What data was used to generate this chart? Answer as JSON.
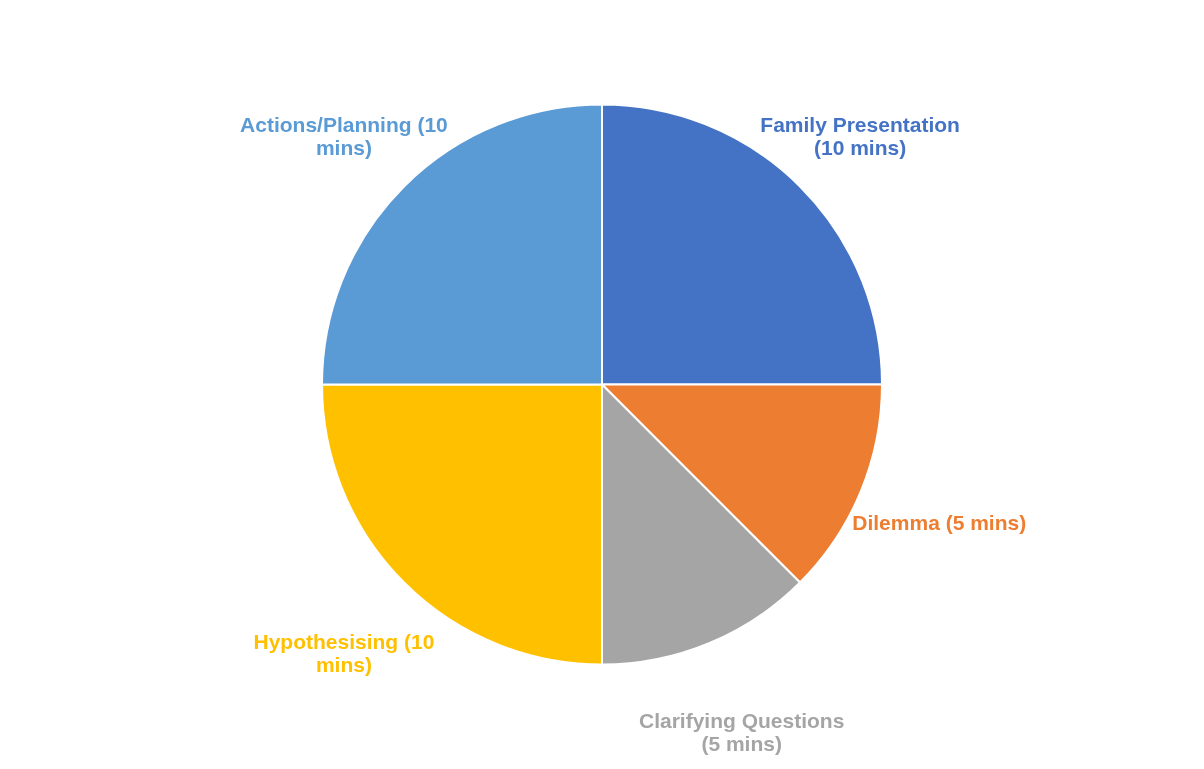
{
  "chart_data": {
    "type": "pie",
    "categories": [
      "Family Presentation (10 mins)",
      "Dilemma (5 mins)",
      "Clarifying Questions (5 mins)",
      "Hypothesising (10 mins)",
      "Actions/Planning (10 mins)"
    ],
    "values": [
      10,
      5,
      5,
      10,
      10
    ],
    "colors": [
      "#4472c4",
      "#ed7d31",
      "#a5a5a5",
      "#ffc000",
      "#5b9bd5"
    ],
    "legend": false
  }
}
